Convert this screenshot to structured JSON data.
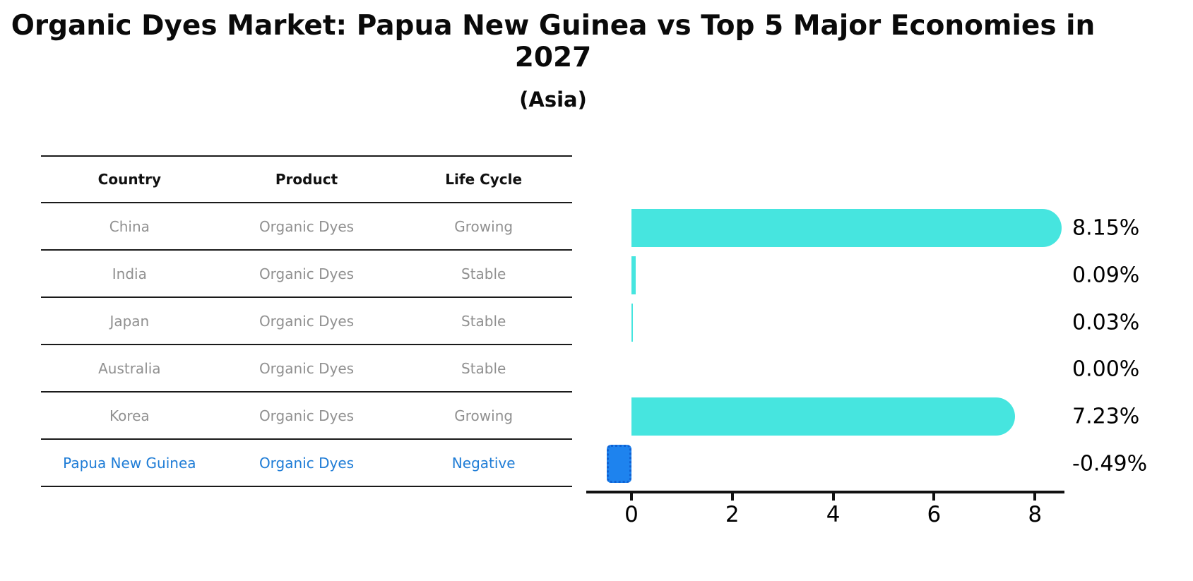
{
  "title": "Organic Dyes Market: Papua New Guinea vs Top 5 Major Economies in 2027",
  "subtitle": "(Asia)",
  "table": {
    "headers": [
      "Country",
      "Product",
      "Life Cycle"
    ],
    "rows": [
      {
        "country": "China",
        "product": "Organic Dyes",
        "life_cycle": "Growing",
        "highlight": false
      },
      {
        "country": "India",
        "product": "Organic Dyes",
        "life_cycle": "Stable",
        "highlight": false
      },
      {
        "country": "Japan",
        "product": "Organic Dyes",
        "life_cycle": "Stable",
        "highlight": false
      },
      {
        "country": "Australia",
        "product": "Organic Dyes",
        "life_cycle": "Stable",
        "highlight": false
      },
      {
        "country": "Korea",
        "product": "Organic Dyes",
        "life_cycle": "Growing",
        "highlight": false
      },
      {
        "country": "Papua New Guinea",
        "product": "Organic Dyes",
        "life_cycle": "Negative",
        "highlight": true
      }
    ]
  },
  "chart_data": {
    "type": "bar",
    "orientation": "horizontal",
    "title": "Organic Dyes Market: Papua New Guinea vs Top 5 Major Economies in 2027",
    "subtitle": "(Asia)",
    "categories": [
      "China",
      "India",
      "Japan",
      "Australia",
      "Korea",
      "Papua New Guinea"
    ],
    "values": [
      8.15,
      0.09,
      0.03,
      0.0,
      7.23,
      -0.49
    ],
    "value_labels": [
      "8.15%",
      "0.09%",
      "0.03%",
      "0.00%",
      "7.23%",
      "-0.49%"
    ],
    "x_ticks": [
      0,
      2,
      4,
      6,
      8
    ],
    "xlim": [
      -0.9,
      8.6
    ],
    "grid": false,
    "legend": "none",
    "bar_color": "#46e5df",
    "highlight_color": "#1e83ee",
    "highlight_text_color": "#1e7cd6",
    "highlight_index": 5
  }
}
